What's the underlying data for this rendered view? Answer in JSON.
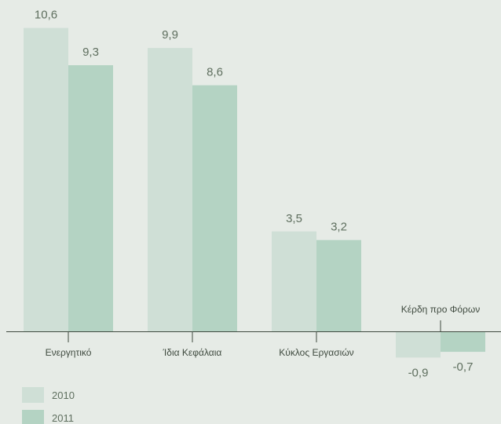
{
  "chart_data": {
    "type": "bar",
    "categories": [
      "Ενεργητικό",
      "Ίδια Κεφάλαια",
      "Κύκλος Εργασιών",
      "Κέρδη προ Φόρων"
    ],
    "series": [
      {
        "name": "2010",
        "values": [
          10.6,
          9.9,
          3.5,
          -0.9
        ],
        "labels": [
          "10,6",
          "9,9",
          "3,5",
          "-0,9"
        ],
        "color": "#cfdfd6"
      },
      {
        "name": "2011",
        "values": [
          9.3,
          8.6,
          3.2,
          -0.7
        ],
        "labels": [
          "9,3",
          "8,6",
          "3,2",
          "-0,7"
        ],
        "color": "#b4d3c3"
      }
    ],
    "legend": "bottom-left",
    "axis_color": "#3f4a3f"
  }
}
